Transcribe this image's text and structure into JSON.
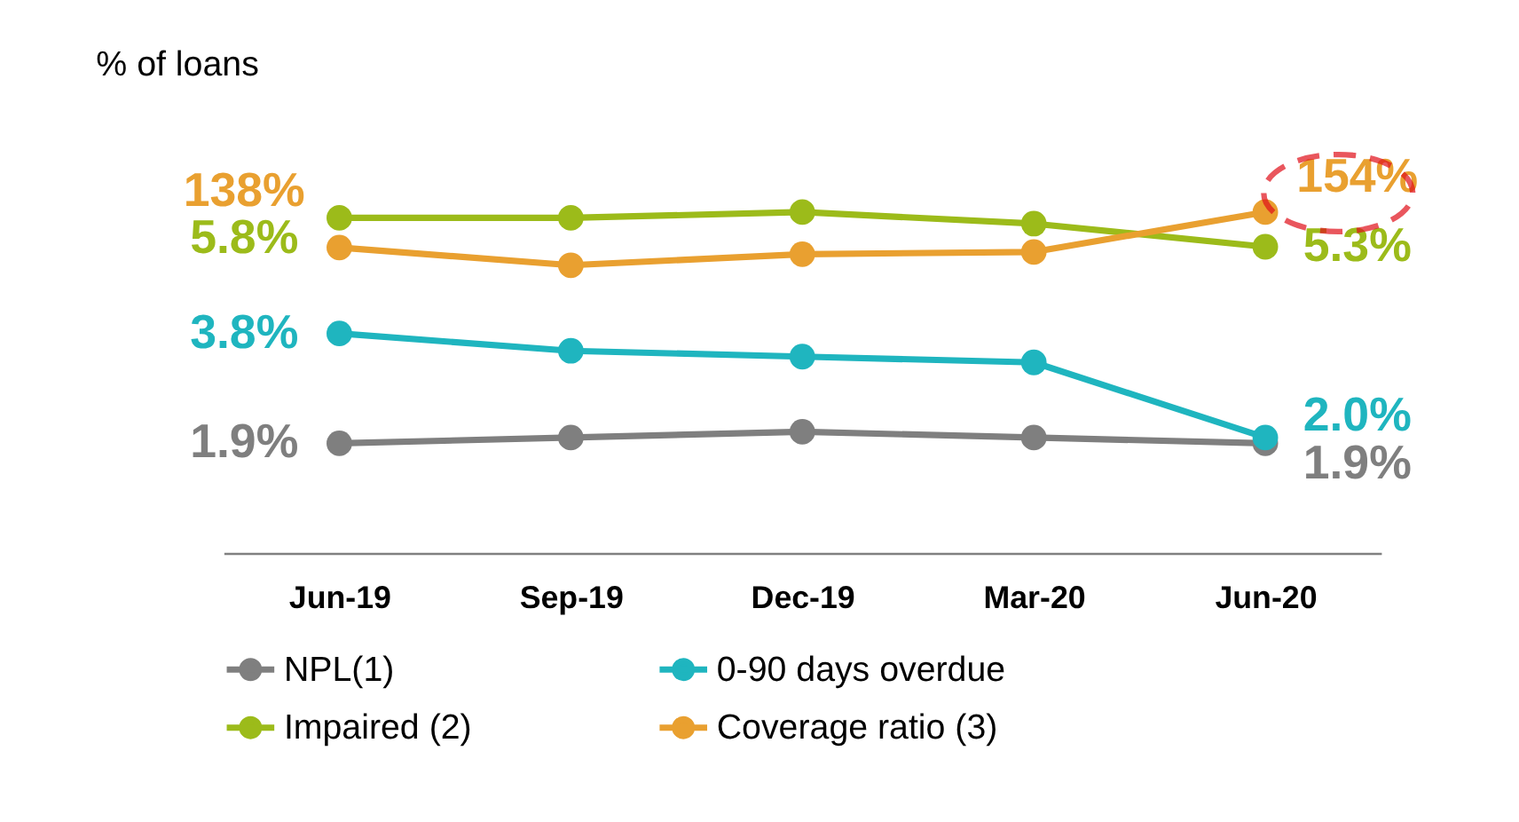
{
  "chart_data": {
    "type": "line",
    "annotations": [
      "% of loans"
    ],
    "categories": [
      "Jun-19",
      "Sep-19",
      "Dec-19",
      "Mar-20",
      "Jun-20"
    ],
    "legend": "bottom",
    "marker": "circle",
    "line_style": "solid",
    "series": [
      {
        "name": "NPL(1)",
        "color": "#7f7f7f",
        "values": [
          1.9,
          2.0,
          2.1,
          2.0,
          1.9
        ],
        "value_labels": [
          "1.9%",
          null,
          null,
          null,
          "1.9%"
        ]
      },
      {
        "name": "0-90 days overdue",
        "color": "#1fb5bf",
        "values": [
          3.8,
          3.5,
          3.4,
          3.3,
          2.0
        ],
        "value_labels": [
          "3.8%",
          null,
          null,
          null,
          "2.0%"
        ]
      },
      {
        "name": "Impaired (2)",
        "color": "#9cbb1a",
        "values": [
          5.8,
          5.8,
          5.9,
          5.7,
          5.3
        ],
        "value_labels": [
          "5.8%",
          null,
          null,
          null,
          "5.3%"
        ]
      },
      {
        "name": "Coverage ratio (3)",
        "color": "#e9a030",
        "axis": "y2",
        "values": [
          138,
          130,
          135,
          136,
          154
        ],
        "value_labels": [
          "138%",
          null,
          null,
          null,
          "154%"
        ]
      }
    ]
  }
}
